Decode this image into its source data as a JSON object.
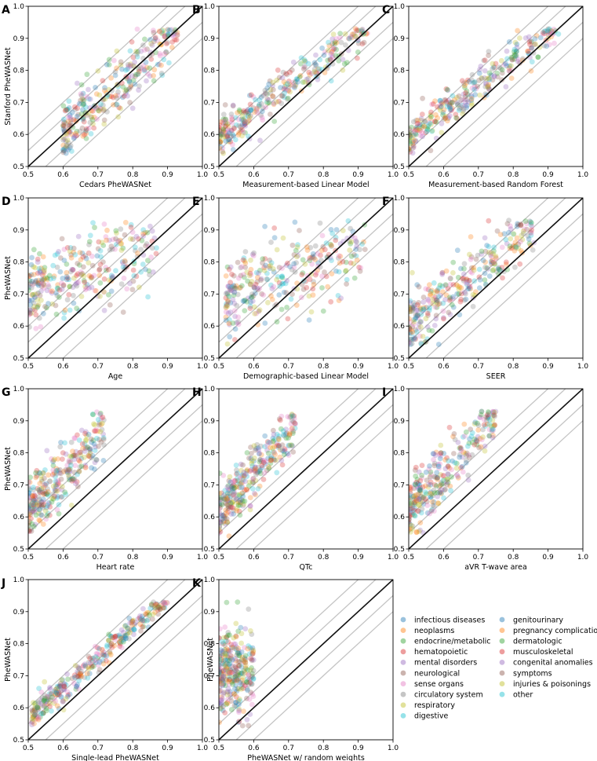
{
  "figure": {
    "scale": {
      "ticks": [
        0.5,
        0.6,
        0.7,
        0.8,
        0.9,
        1.0
      ],
      "tick_labels": [
        "0.5",
        "0.6",
        "0.7",
        "0.8",
        "0.9",
        "1.0"
      ],
      "xlim": [
        0.5,
        1.0
      ],
      "ylim": [
        0.5,
        1.0
      ]
    },
    "reference_lines": {
      "identity": 0,
      "offsets": [
        -0.1,
        -0.05,
        0.05,
        0.1
      ]
    },
    "point_alpha": 0.3
  },
  "chart_data": [
    {
      "type": "scatter",
      "letter": "A",
      "xlabel": "Cedars PheWASNet",
      "ylabel": "Stanford PheWASNet",
      "cloud": {
        "x_range": [
          0.6,
          0.93
        ],
        "slope": 1.0,
        "intercept": 0.0,
        "spread": 0.045
      }
    },
    {
      "type": "scatter",
      "letter": "B",
      "xlabel": "Measurement-based Linear Model",
      "ylabel": "",
      "cloud": {
        "x_range": [
          0.5,
          0.93
        ],
        "slope": 0.83,
        "intercept": 0.17,
        "spread": 0.03
      }
    },
    {
      "type": "scatter",
      "letter": "C",
      "xlabel": "Measurement-based Random Forest",
      "ylabel": "",
      "cloud": {
        "x_range": [
          0.5,
          0.93
        ],
        "slope": 0.83,
        "intercept": 0.17,
        "spread": 0.03
      }
    },
    {
      "type": "scatter",
      "letter": "D",
      "xlabel": "Age",
      "ylabel": "PheWASNet",
      "cloud": {
        "x_range": [
          0.5,
          0.87
        ],
        "slope": 0.35,
        "intercept": 0.53,
        "spread": 0.06
      }
    },
    {
      "type": "scatter",
      "letter": "E",
      "xlabel": "Demographic-based Linear Model",
      "ylabel": "",
      "cloud": {
        "x_range": [
          0.52,
          0.92
        ],
        "slope": 0.35,
        "intercept": 0.51,
        "spread": 0.06
      }
    },
    {
      "type": "scatter",
      "letter": "F",
      "xlabel": "SEER",
      "ylabel": "",
      "cloud": {
        "x_range": [
          0.5,
          0.86
        ],
        "slope": 0.85,
        "intercept": 0.18,
        "spread": 0.045
      }
    },
    {
      "type": "scatter",
      "letter": "G",
      "xlabel": "Heart rate",
      "ylabel": "PheWASNet",
      "cloud": {
        "x_range": [
          0.5,
          0.72
        ],
        "slope": 1.05,
        "intercept": 0.1,
        "spread": 0.045
      }
    },
    {
      "type": "scatter",
      "letter": "H",
      "xlabel": "QTc",
      "ylabel": "",
      "cloud": {
        "x_range": [
          0.5,
          0.72
        ],
        "slope": 1.2,
        "intercept": 0.02,
        "spread": 0.045
      }
    },
    {
      "type": "scatter",
      "letter": "I",
      "xlabel": "aVR T-wave area",
      "ylabel": "",
      "cloud": {
        "x_range": [
          0.5,
          0.75
        ],
        "slope": 1.2,
        "intercept": 0.02,
        "spread": 0.045
      }
    },
    {
      "type": "scatter",
      "letter": "J",
      "xlabel": "Single-lead PheWASNet",
      "ylabel": "PheWASNet",
      "cloud": {
        "x_range": [
          0.51,
          0.9
        ],
        "slope": 0.95,
        "intercept": 0.09,
        "spread": 0.02
      }
    },
    {
      "type": "scatter",
      "letter": "K",
      "xlabel": "PheWASNet w/ random weights",
      "ylabel": "PheWASNet",
      "cloud": {
        "x_range": [
          0.5,
          0.6
        ],
        "slope": 0.4,
        "intercept": 0.5,
        "spread": 0.07
      }
    }
  ],
  "legend": {
    "position": "lower-right",
    "items": [
      {
        "label": "infectious diseases",
        "color": "#1f77b4"
      },
      {
        "label": "neoplasms",
        "color": "#ff7f0e"
      },
      {
        "label": "endocrine/metabolic",
        "color": "#2ca02c"
      },
      {
        "label": "hematopoietic",
        "color": "#d62728"
      },
      {
        "label": "mental disorders",
        "color": "#9467bd"
      },
      {
        "label": "neurological",
        "color": "#8c564b"
      },
      {
        "label": "sense organs",
        "color": "#e377c2"
      },
      {
        "label": "circulatory system",
        "color": "#7f7f7f"
      },
      {
        "label": "respiratory",
        "color": "#bcbd22"
      },
      {
        "label": "digestive",
        "color": "#17becf"
      },
      {
        "label": "genitourinary",
        "color": "#1f77b4"
      },
      {
        "label": "pregnancy complications",
        "color": "#ff7f0e"
      },
      {
        "label": "dermatologic",
        "color": "#2ca02c"
      },
      {
        "label": "musculoskeletal",
        "color": "#d62728"
      },
      {
        "label": "congenital anomalies",
        "color": "#9467bd"
      },
      {
        "label": "symptoms",
        "color": "#8c564b"
      },
      {
        "label": "injuries & poisonings",
        "color": "#bcbd22"
      },
      {
        "label": "other",
        "color": "#17becf"
      }
    ]
  }
}
